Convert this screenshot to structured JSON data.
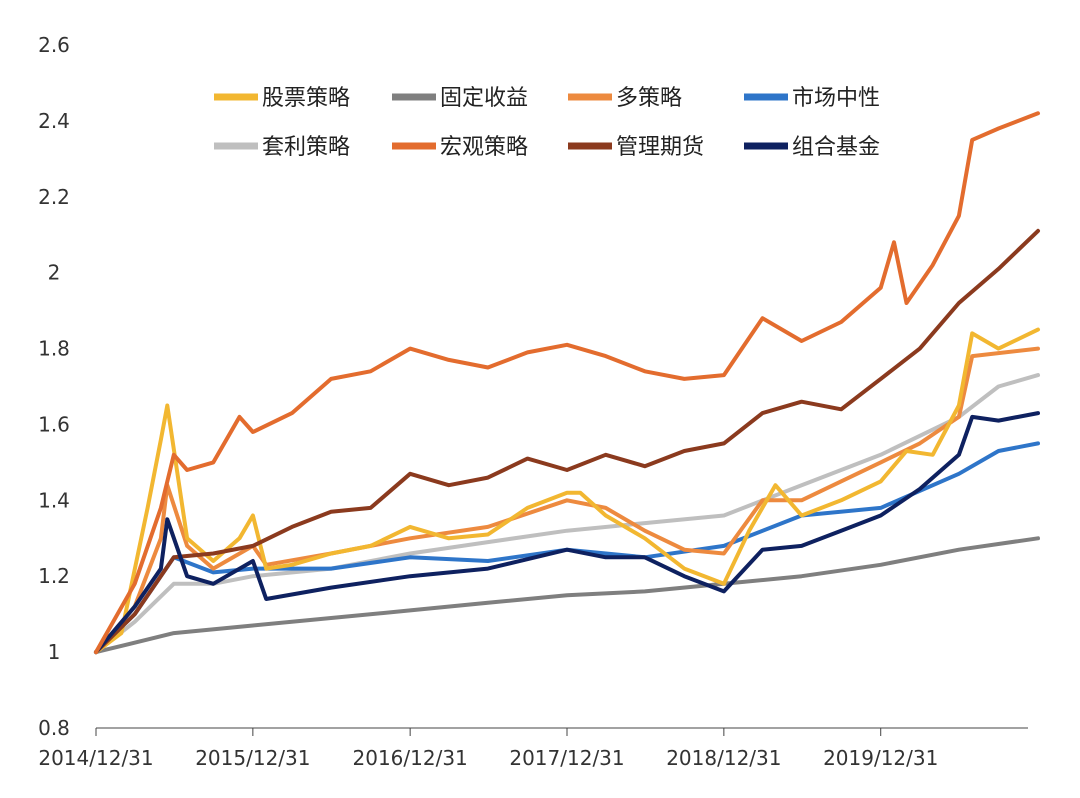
{
  "chart_data": {
    "type": "line",
    "title": "",
    "xlabel": "",
    "ylabel": "",
    "ylim": [
      0.8,
      2.6
    ],
    "yticks": [
      0.8,
      1,
      1.2,
      1.4,
      1.6,
      1.8,
      2,
      2.2,
      2.4,
      2.6
    ],
    "ytick_labels": [
      "0.8",
      "1",
      "1.2",
      "1.4",
      "1.6",
      "1.8",
      "2",
      "2.2",
      "2.4",
      "2.6"
    ],
    "xlim": [
      "2014-12-31",
      "2020-12-31"
    ],
    "xticks": [
      "2014-12-31",
      "2015-12-31",
      "2016-12-31",
      "2017-12-31",
      "2018-12-31",
      "2019-12-31"
    ],
    "xtick_labels": [
      "2014/12/31",
      "2015/12/31",
      "2016/12/31",
      "2017/12/31",
      "2018/12/31",
      "2019/12/31"
    ],
    "grid": false,
    "legend_position": "top",
    "series": [
      {
        "name": "股票策略",
        "color": "#F2B731",
        "points": [
          [
            "2014-12-31",
            1.0
          ],
          [
            "2015-02-28",
            1.05
          ],
          [
            "2015-04-30",
            1.38
          ],
          [
            "2015-05-31",
            1.56
          ],
          [
            "2015-06-15",
            1.65
          ],
          [
            "2015-07-31",
            1.3
          ],
          [
            "2015-09-30",
            1.24
          ],
          [
            "2015-11-30",
            1.3
          ],
          [
            "2015-12-31",
            1.36
          ],
          [
            "2016-01-31",
            1.22
          ],
          [
            "2016-03-31",
            1.23
          ],
          [
            "2016-06-30",
            1.26
          ],
          [
            "2016-09-30",
            1.28
          ],
          [
            "2016-12-31",
            1.33
          ],
          [
            "2017-03-31",
            1.3
          ],
          [
            "2017-06-30",
            1.31
          ],
          [
            "2017-09-30",
            1.38
          ],
          [
            "2017-12-31",
            1.42
          ],
          [
            "2018-01-31",
            1.42
          ],
          [
            "2018-03-31",
            1.36
          ],
          [
            "2018-06-30",
            1.3
          ],
          [
            "2018-09-30",
            1.22
          ],
          [
            "2018-12-31",
            1.18
          ],
          [
            "2019-02-28",
            1.32
          ],
          [
            "2019-04-30",
            1.44
          ],
          [
            "2019-06-30",
            1.36
          ],
          [
            "2019-09-30",
            1.4
          ],
          [
            "2019-12-31",
            1.45
          ],
          [
            "2020-02-29",
            1.53
          ],
          [
            "2020-04-30",
            1.52
          ],
          [
            "2020-06-30",
            1.65
          ],
          [
            "2020-07-31",
            1.84
          ],
          [
            "2020-09-30",
            1.8
          ],
          [
            "2020-12-31",
            1.85
          ]
        ]
      },
      {
        "name": "固定收益",
        "color": "#7F7F7F",
        "points": [
          [
            "2014-12-31",
            1.0
          ],
          [
            "2015-06-30",
            1.05
          ],
          [
            "2015-12-31",
            1.07
          ],
          [
            "2016-06-30",
            1.09
          ],
          [
            "2016-12-31",
            1.11
          ],
          [
            "2017-06-30",
            1.13
          ],
          [
            "2017-12-31",
            1.15
          ],
          [
            "2018-06-30",
            1.16
          ],
          [
            "2018-12-31",
            1.18
          ],
          [
            "2019-06-30",
            1.2
          ],
          [
            "2019-12-31",
            1.23
          ],
          [
            "2020-06-30",
            1.27
          ],
          [
            "2020-12-31",
            1.3
          ]
        ]
      },
      {
        "name": "多策略",
        "color": "#ED8A3F",
        "points": [
          [
            "2014-12-31",
            1.0
          ],
          [
            "2015-03-31",
            1.12
          ],
          [
            "2015-05-31",
            1.3
          ],
          [
            "2015-06-15",
            1.44
          ],
          [
            "2015-07-31",
            1.28
          ],
          [
            "2015-09-30",
            1.22
          ],
          [
            "2015-12-31",
            1.28
          ],
          [
            "2016-01-31",
            1.23
          ],
          [
            "2016-06-30",
            1.26
          ],
          [
            "2016-12-31",
            1.3
          ],
          [
            "2017-06-30",
            1.33
          ],
          [
            "2017-12-31",
            1.4
          ],
          [
            "2018-03-31",
            1.38
          ],
          [
            "2018-06-30",
            1.32
          ],
          [
            "2018-09-30",
            1.27
          ],
          [
            "2018-12-31",
            1.26
          ],
          [
            "2019-03-31",
            1.4
          ],
          [
            "2019-06-30",
            1.4
          ],
          [
            "2019-12-31",
            1.5
          ],
          [
            "2020-03-31",
            1.55
          ],
          [
            "2020-06-30",
            1.62
          ],
          [
            "2020-07-31",
            1.78
          ],
          [
            "2020-12-31",
            1.8
          ]
        ]
      },
      {
        "name": "市场中性",
        "color": "#2E75C9",
        "points": [
          [
            "2014-12-31",
            1.0
          ],
          [
            "2015-03-31",
            1.1
          ],
          [
            "2015-06-30",
            1.25
          ],
          [
            "2015-09-30",
            1.21
          ],
          [
            "2015-12-31",
            1.22
          ],
          [
            "2016-06-30",
            1.22
          ],
          [
            "2016-12-31",
            1.25
          ],
          [
            "2017-06-30",
            1.24
          ],
          [
            "2017-12-31",
            1.27
          ],
          [
            "2018-06-30",
            1.25
          ],
          [
            "2018-12-31",
            1.28
          ],
          [
            "2019-06-30",
            1.36
          ],
          [
            "2019-12-31",
            1.38
          ],
          [
            "2020-06-30",
            1.47
          ],
          [
            "2020-09-30",
            1.53
          ],
          [
            "2020-12-31",
            1.55
          ]
        ]
      },
      {
        "name": "套利策略",
        "color": "#BFBFBF",
        "points": [
          [
            "2014-12-31",
            1.0
          ],
          [
            "2015-03-31",
            1.08
          ],
          [
            "2015-06-30",
            1.18
          ],
          [
            "2015-09-30",
            1.18
          ],
          [
            "2015-12-31",
            1.2
          ],
          [
            "2016-06-30",
            1.22
          ],
          [
            "2016-12-31",
            1.26
          ],
          [
            "2017-06-30",
            1.29
          ],
          [
            "2017-12-31",
            1.32
          ],
          [
            "2018-06-30",
            1.34
          ],
          [
            "2018-12-31",
            1.36
          ],
          [
            "2019-06-30",
            1.44
          ],
          [
            "2019-12-31",
            1.52
          ],
          [
            "2020-06-30",
            1.62
          ],
          [
            "2020-09-30",
            1.7
          ],
          [
            "2020-12-31",
            1.73
          ]
        ]
      },
      {
        "name": "宏观策略",
        "color": "#E36C2E",
        "points": [
          [
            "2014-12-31",
            1.0
          ],
          [
            "2015-03-31",
            1.18
          ],
          [
            "2015-05-31",
            1.38
          ],
          [
            "2015-06-30",
            1.52
          ],
          [
            "2015-07-31",
            1.48
          ],
          [
            "2015-09-30",
            1.5
          ],
          [
            "2015-11-30",
            1.62
          ],
          [
            "2015-12-31",
            1.58
          ],
          [
            "2016-03-31",
            1.63
          ],
          [
            "2016-06-30",
            1.72
          ],
          [
            "2016-09-30",
            1.74
          ],
          [
            "2016-12-31",
            1.8
          ],
          [
            "2017-03-31",
            1.77
          ],
          [
            "2017-06-30",
            1.75
          ],
          [
            "2017-09-30",
            1.79
          ],
          [
            "2017-12-31",
            1.81
          ],
          [
            "2018-03-31",
            1.78
          ],
          [
            "2018-06-30",
            1.74
          ],
          [
            "2018-09-30",
            1.72
          ],
          [
            "2018-12-31",
            1.73
          ],
          [
            "2019-03-31",
            1.88
          ],
          [
            "2019-06-30",
            1.82
          ],
          [
            "2019-09-30",
            1.87
          ],
          [
            "2019-12-31",
            1.96
          ],
          [
            "2020-01-31",
            2.08
          ],
          [
            "2020-02-29",
            1.92
          ],
          [
            "2020-04-30",
            2.02
          ],
          [
            "2020-06-30",
            2.15
          ],
          [
            "2020-07-31",
            2.35
          ],
          [
            "2020-09-30",
            2.38
          ],
          [
            "2020-12-31",
            2.42
          ]
        ]
      },
      {
        "name": "管理期货",
        "color": "#8B3A1E",
        "points": [
          [
            "2014-12-31",
            1.0
          ],
          [
            "2015-03-31",
            1.1
          ],
          [
            "2015-06-30",
            1.25
          ],
          [
            "2015-09-30",
            1.26
          ],
          [
            "2015-12-31",
            1.28
          ],
          [
            "2016-03-31",
            1.33
          ],
          [
            "2016-06-30",
            1.37
          ],
          [
            "2016-09-30",
            1.38
          ],
          [
            "2016-12-31",
            1.47
          ],
          [
            "2017-03-31",
            1.44
          ],
          [
            "2017-06-30",
            1.46
          ],
          [
            "2017-09-30",
            1.51
          ],
          [
            "2017-12-31",
            1.48
          ],
          [
            "2018-03-31",
            1.52
          ],
          [
            "2018-06-30",
            1.49
          ],
          [
            "2018-09-30",
            1.53
          ],
          [
            "2018-12-31",
            1.55
          ],
          [
            "2019-03-31",
            1.63
          ],
          [
            "2019-06-30",
            1.66
          ],
          [
            "2019-09-30",
            1.64
          ],
          [
            "2019-12-31",
            1.72
          ],
          [
            "2020-03-31",
            1.8
          ],
          [
            "2020-06-30",
            1.92
          ],
          [
            "2020-09-30",
            2.01
          ],
          [
            "2020-12-31",
            2.11
          ]
        ]
      },
      {
        "name": "组合基金",
        "color": "#0E2160",
        "points": [
          [
            "2014-12-31",
            1.0
          ],
          [
            "2015-03-31",
            1.12
          ],
          [
            "2015-05-31",
            1.22
          ],
          [
            "2015-06-15",
            1.35
          ],
          [
            "2015-07-31",
            1.2
          ],
          [
            "2015-09-30",
            1.18
          ],
          [
            "2015-12-31",
            1.24
          ],
          [
            "2016-01-31",
            1.14
          ],
          [
            "2016-06-30",
            1.17
          ],
          [
            "2016-12-31",
            1.2
          ],
          [
            "2017-06-30",
            1.22
          ],
          [
            "2017-12-31",
            1.27
          ],
          [
            "2018-03-31",
            1.25
          ],
          [
            "2018-06-30",
            1.25
          ],
          [
            "2018-09-30",
            1.2
          ],
          [
            "2018-12-31",
            1.16
          ],
          [
            "2019-03-31",
            1.27
          ],
          [
            "2019-06-30",
            1.28
          ],
          [
            "2019-09-30",
            1.32
          ],
          [
            "2019-12-31",
            1.36
          ],
          [
            "2020-03-31",
            1.43
          ],
          [
            "2020-06-30",
            1.52
          ],
          [
            "2020-07-31",
            1.62
          ],
          [
            "2020-09-30",
            1.61
          ],
          [
            "2020-12-31",
            1.63
          ]
        ]
      }
    ]
  }
}
